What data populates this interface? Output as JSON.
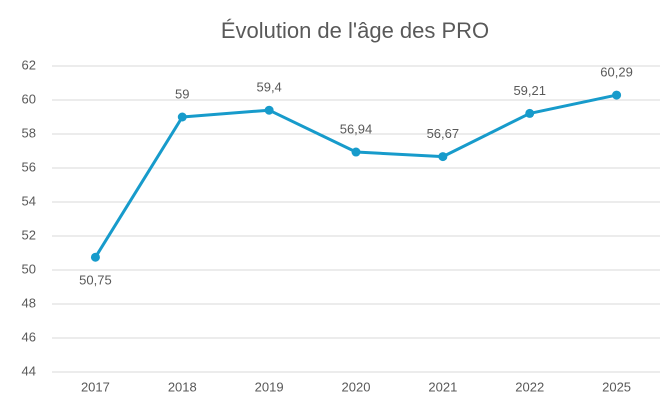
{
  "chart_data": {
    "type": "line",
    "title": "Évolution de l'âge des PRO",
    "categories": [
      "2017",
      "2018",
      "2019",
      "2020",
      "2021",
      "2022",
      "2025"
    ],
    "values": [
      50.75,
      59,
      59.4,
      56.94,
      56.67,
      59.21,
      60.29
    ],
    "value_labels": [
      "50,75",
      "59",
      "59,4",
      "56,94",
      "56,67",
      "59,21",
      "60,29"
    ],
    "color": "#179bcb",
    "ylim": [
      44,
      62
    ],
    "yticks": [
      44,
      46,
      48,
      50,
      52,
      54,
      56,
      58,
      60,
      62
    ],
    "grid": true
  }
}
